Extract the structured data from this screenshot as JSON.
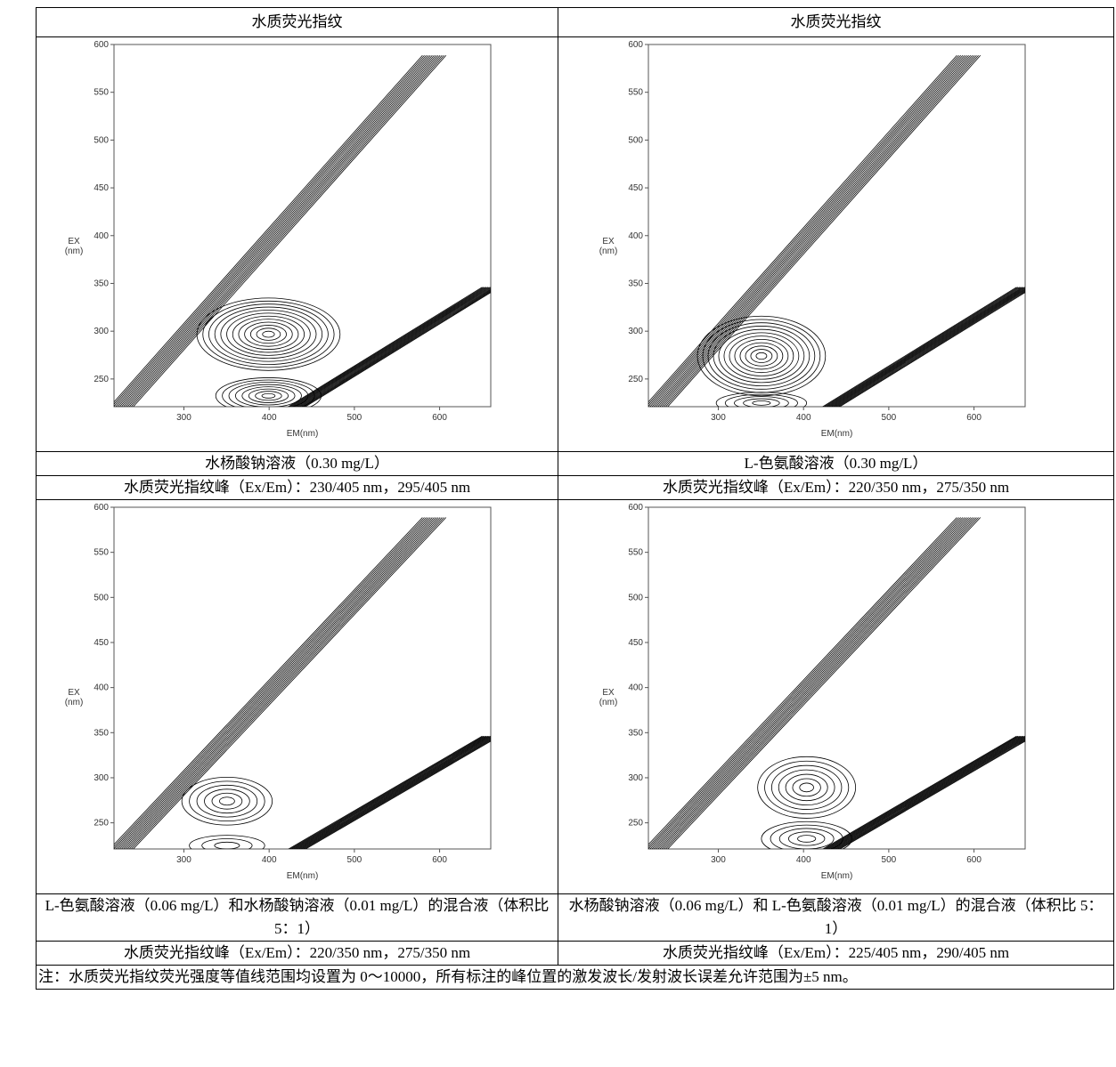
{
  "table": {
    "headers": [
      "水质荧光指纹",
      "水质荧光指纹"
    ],
    "axes": {
      "xlabel": "EM(nm)",
      "ylabel": "EX",
      "yunit": "(nm)",
      "xlim": [
        218,
        660
      ],
      "ylim": [
        221,
        600
      ],
      "xticks": [
        300,
        400,
        500,
        600
      ],
      "yticks": [
        250,
        300,
        350,
        400,
        450,
        500,
        550,
        600
      ]
    },
    "panels": [
      {
        "sample": "水杨酸钠溶液（0.30 mg/L）",
        "peaks": "水质荧光指纹峰（Ex/Em）：230/405 nm，295/405 nm"
      },
      {
        "sample": "L-色氨酸溶液（0.30 mg/L）",
        "peaks": "水质荧光指纹峰（Ex/Em）：220/350 nm，275/350 nm"
      },
      {
        "sample": "L-色氨酸溶液（0.06 mg/L）和水杨酸钠溶液（0.01 mg/L）的混合液（体积比 5：1）",
        "peaks": "水质荧光指纹峰（Ex/Em）：220/350 nm，275/350 nm"
      },
      {
        "sample": "水杨酸钠溶液（0.06 mg/L）和 L-色氨酸溶液（0.01 mg/L）的混合液（体积比 5：1）",
        "peaks": "水质荧光指纹峰（Ex/Em）：225/405 nm，290/405 nm"
      }
    ],
    "note": "注：水质荧光指纹荧光强度等值线范围均设置为 0～10000，所有标注的峰位置的激发波长/发射波长误差允许范围为±5 nm。"
  }
}
